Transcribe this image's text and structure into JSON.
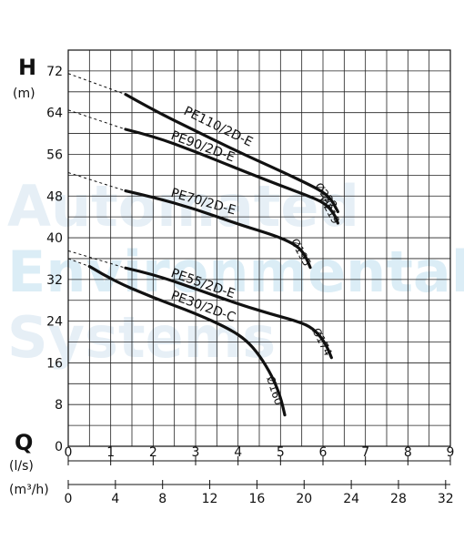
{
  "watermark": [
    "Automated",
    "Environmental",
    "Systems"
  ],
  "chart_data": {
    "type": "line",
    "ylabel_symbol": "H",
    "ylabel_unit": "(m)",
    "xlabel_symbol": "Q",
    "x1_unit": "(l/s)",
    "x2_unit": "(m³/h)",
    "ylim": [
      0,
      76
    ],
    "xlim": [
      0,
      9
    ],
    "yticks": [
      0,
      8,
      16,
      24,
      32,
      40,
      48,
      56,
      64,
      72
    ],
    "x1_ticks": [
      0,
      1,
      2,
      3,
      4,
      5,
      6,
      7,
      8,
      9
    ],
    "x2_ticks": [
      0,
      4,
      8,
      12,
      16,
      20,
      24,
      28,
      32
    ],
    "grid": true,
    "series": [
      {
        "name": "PE110/2D-E",
        "impeller": "Ø222",
        "dashed": [
          [
            0,
            71.5
          ],
          [
            1.35,
            67.5
          ]
        ],
        "points": [
          [
            1.35,
            67.5
          ],
          [
            2.0,
            64.5
          ],
          [
            3.0,
            60.5
          ],
          [
            4.0,
            56.5
          ],
          [
            5.0,
            52.8
          ],
          [
            5.6,
            50.5
          ],
          [
            6.0,
            48.8
          ],
          [
            6.2,
            47.3
          ],
          [
            6.35,
            45.0
          ]
        ]
      },
      {
        "name": "PE90/2D-E",
        "impeller": "Ø219",
        "dashed": [
          [
            0,
            64.5
          ],
          [
            1.35,
            60.8
          ]
        ],
        "points": [
          [
            1.35,
            60.8
          ],
          [
            2.0,
            59.5
          ],
          [
            3.0,
            56.5
          ],
          [
            4.0,
            53.2
          ],
          [
            5.0,
            50.0
          ],
          [
            5.6,
            48.2
          ],
          [
            5.95,
            47.0
          ],
          [
            6.15,
            45.8
          ],
          [
            6.3,
            44.0
          ],
          [
            6.35,
            42.8
          ]
        ]
      },
      {
        "name": "PE70/2D-E",
        "impeller": "Ø195",
        "dashed": [
          [
            0,
            52.5
          ],
          [
            1.35,
            49.0
          ]
        ],
        "points": [
          [
            1.35,
            49.0
          ],
          [
            2.0,
            47.8
          ],
          [
            3.0,
            45.5
          ],
          [
            4.0,
            42.6
          ],
          [
            4.8,
            40.6
          ],
          [
            5.2,
            39.3
          ],
          [
            5.45,
            38.0
          ],
          [
            5.6,
            36.3
          ],
          [
            5.7,
            34.3
          ]
        ]
      },
      {
        "name": "PE55/2D-E",
        "impeller": "Ø174",
        "dashed": [
          [
            0,
            37.5
          ],
          [
            1.35,
            34.2
          ]
        ],
        "points": [
          [
            1.35,
            34.2
          ],
          [
            2.0,
            33.0
          ],
          [
            3.0,
            30.2
          ],
          [
            4.0,
            27.3
          ],
          [
            4.8,
            25.3
          ],
          [
            5.3,
            24.2
          ],
          [
            5.7,
            23.0
          ],
          [
            5.95,
            21.0
          ],
          [
            6.1,
            19.0
          ],
          [
            6.2,
            17.0
          ]
        ]
      },
      {
        "name": "PE30/2D-C",
        "impeller": "Ø160",
        "dashed": [
          [
            0,
            36.0
          ],
          [
            0.5,
            34.5
          ]
        ],
        "points": [
          [
            0.5,
            34.5
          ],
          [
            1.0,
            32.0
          ],
          [
            2.0,
            28.5
          ],
          [
            3.0,
            25.5
          ],
          [
            3.8,
            22.5
          ],
          [
            4.2,
            20.3
          ],
          [
            4.5,
            17.5
          ],
          [
            4.8,
            13.5
          ],
          [
            5.0,
            9.5
          ],
          [
            5.1,
            6.0
          ]
        ]
      }
    ]
  }
}
